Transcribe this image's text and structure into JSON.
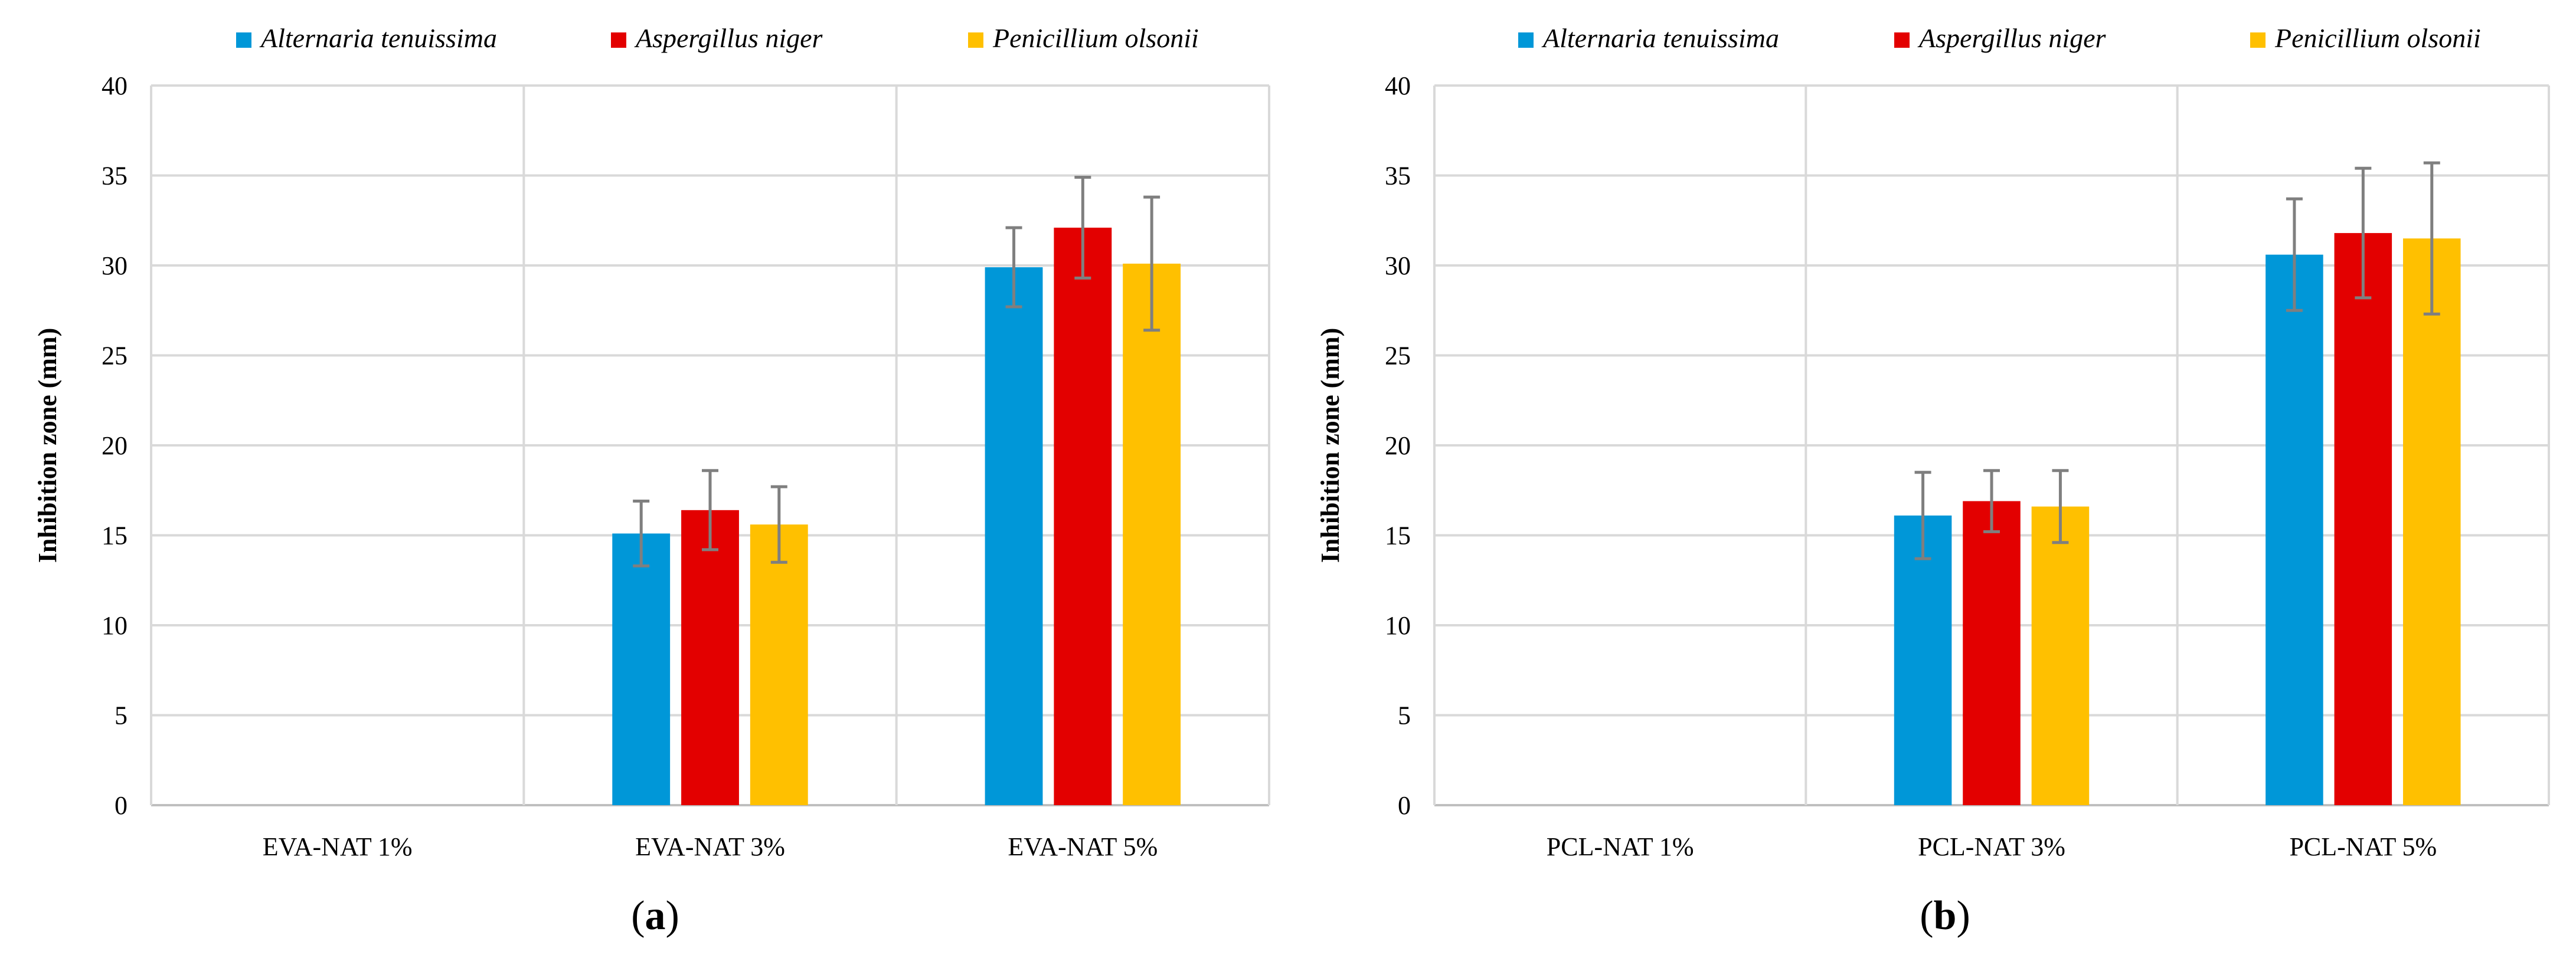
{
  "chart_data": [
    {
      "type": "bar",
      "panel": "a",
      "panel_label": {
        "open": "(",
        "letter": "a",
        "close": ")"
      },
      "title": "",
      "xlabel": "",
      "ylabel": "Inhibition zone (mm)",
      "ylim": [
        0,
        40
      ],
      "yticks": [
        0,
        5,
        10,
        15,
        20,
        25,
        30,
        35,
        40
      ],
      "grid": true,
      "legend_position": "top",
      "categories": [
        "EVA-NAT 1%",
        "EVA-NAT 3%",
        "EVA-NAT 5%"
      ],
      "series": [
        {
          "name": "Alternaria tenuissima",
          "color": "#0097D8",
          "values": [
            0,
            15.1,
            29.9
          ],
          "errors": [
            0,
            1.8,
            2.2
          ]
        },
        {
          "name": "Aspergillus niger",
          "color": "#E30000",
          "values": [
            0,
            16.4,
            32.1
          ],
          "errors": [
            0,
            2.2,
            2.8
          ]
        },
        {
          "name": "Penicillium olsonii",
          "color": "#FFC000",
          "values": [
            0,
            15.6,
            30.1
          ],
          "errors": [
            0,
            2.1,
            3.7
          ]
        }
      ]
    },
    {
      "type": "bar",
      "panel": "b",
      "panel_label": {
        "open": "(",
        "letter": "b",
        "close": ")"
      },
      "title": "",
      "xlabel": "",
      "ylabel": "Inhibition zone (mm)",
      "ylim": [
        0,
        40
      ],
      "yticks": [
        0,
        5,
        10,
        15,
        20,
        25,
        30,
        35,
        40
      ],
      "grid": true,
      "legend_position": "top",
      "categories": [
        "PCL-NAT 1%",
        "PCL-NAT 3%",
        "PCL-NAT 5%"
      ],
      "series": [
        {
          "name": "Alternaria tenuissima",
          "color": "#0097D8",
          "values": [
            0,
            16.1,
            30.6
          ],
          "errors": [
            0,
            2.4,
            3.1
          ]
        },
        {
          "name": "Aspergillus niger",
          "color": "#E30000",
          "values": [
            0,
            16.9,
            31.8
          ],
          "errors": [
            0,
            1.7,
            3.6
          ]
        },
        {
          "name": "Penicillium olsonii",
          "color": "#FFC000",
          "values": [
            0,
            16.6,
            31.5
          ],
          "errors": [
            0,
            2.0,
            4.2
          ]
        }
      ]
    }
  ],
  "colors": {
    "grid": "#D9D9D9",
    "axis": "#BFBFBF",
    "error_bar": "#7F7F7F"
  }
}
